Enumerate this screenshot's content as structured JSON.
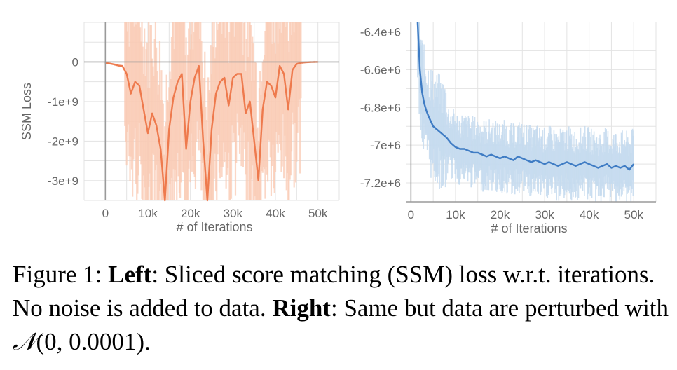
{
  "chart_data": [
    {
      "type": "line",
      "xlabel": "# of Iterations",
      "ylabel": "SSM Loss",
      "x_ticks": [
        "0",
        "10k",
        "20k",
        "30k",
        "40k",
        "50k"
      ],
      "y_ticks": [
        "0",
        "-1e+9",
        "-2e+9",
        "-3e+9"
      ],
      "xlim": [
        -5000,
        55000
      ],
      "ylim": [
        -3500000000,
        1000000000
      ],
      "grid": true,
      "colors": {
        "line": "#ee7a4d",
        "band": "#f9c9b3"
      },
      "series": [
        {
          "x": [
            0,
            1000,
            2000,
            3000,
            4000,
            5000,
            6000,
            7000,
            8000,
            9000,
            10000,
            11000,
            12000,
            13000,
            14000,
            15000,
            16000,
            17000,
            18000,
            19000,
            20000,
            21000,
            22000,
            23000,
            24000,
            25000,
            26000,
            27000,
            28000,
            29000,
            30000,
            31000,
            32000,
            33000,
            34000,
            35000,
            36000,
            37000,
            38000,
            39000,
            40000,
            41000,
            42000,
            43000,
            44000,
            45000,
            46000,
            47000,
            48000,
            49000,
            50000
          ],
          "y": [
            -20000000,
            -40000000,
            -60000000,
            -90000000,
            -100000000,
            -300000000,
            -800000000,
            -500000000,
            -600000000,
            -1200000000,
            -1800000000,
            -1300000000,
            -1600000000,
            -2200000000,
            -3500000000,
            -1700000000,
            -900000000,
            -500000000,
            -300000000,
            -2200000000,
            -1000000000,
            -400000000,
            -100000000,
            -2000000000,
            -3500000000,
            -1700000000,
            -800000000,
            -500000000,
            -400000000,
            -1100000000,
            -400000000,
            -300000000,
            -300000000,
            -1300000000,
            -1000000000,
            -2000000000,
            -3000000000,
            -1200000000,
            -500000000,
            -600000000,
            -900000000,
            -100000000,
            -300000000,
            -1200000000,
            -200000000,
            -50000000,
            -20000000,
            -10000000,
            -5000000,
            0,
            0
          ]
        }
      ]
    },
    {
      "type": "line",
      "xlabel": "# of Iterations",
      "ylabel": "",
      "x_ticks": [
        "0",
        "10k",
        "20k",
        "30k",
        "40k",
        "50k"
      ],
      "y_ticks": [
        "-6.4e+6",
        "-6.6e+6",
        "-6.8e+6",
        "-7e+6",
        "-7.2e+6"
      ],
      "xlim": [
        -1000,
        55000
      ],
      "ylim": [
        -7300000,
        -6350000
      ],
      "grid": true,
      "colors": {
        "line": "#3f7cc4",
        "band": "#c6daee"
      },
      "series": [
        {
          "x": [
            1500,
            2000,
            2500,
            3000,
            3500,
            4000,
            5000,
            6000,
            7000,
            8000,
            9000,
            10000,
            11000,
            12000,
            13000,
            14000,
            15000,
            16000,
            17000,
            18000,
            19000,
            20000,
            21000,
            22000,
            23000,
            24000,
            25000,
            26000,
            27000,
            28000,
            29000,
            30000,
            31000,
            32000,
            33000,
            34000,
            35000,
            36000,
            37000,
            38000,
            39000,
            40000,
            41000,
            42000,
            43000,
            44000,
            45000,
            46000,
            47000,
            48000,
            49000,
            50000
          ],
          "y": [
            -6350000,
            -6600000,
            -6720000,
            -6780000,
            -6820000,
            -6850000,
            -6900000,
            -6920000,
            -6940000,
            -6960000,
            -6990000,
            -7010000,
            -7020000,
            -7020000,
            -7030000,
            -7040000,
            -7040000,
            -7050000,
            -7060000,
            -7050000,
            -7060000,
            -7070000,
            -7060000,
            -7070000,
            -7080000,
            -7060000,
            -7070000,
            -7080000,
            -7090000,
            -7080000,
            -7090000,
            -7100000,
            -7090000,
            -7100000,
            -7110000,
            -7100000,
            -7090000,
            -7100000,
            -7110000,
            -7100000,
            -7090000,
            -7100000,
            -7110000,
            -7120000,
            -7110000,
            -7100000,
            -7120000,
            -7110000,
            -7120000,
            -7110000,
            -7130000,
            -7100000
          ]
        }
      ]
    }
  ],
  "caption": {
    "figure_label": "Figure 1: ",
    "left_label": "Left",
    "left_text": ": Sliced score matching (SSM) loss w.r.t. iterations. No noise is added to data. ",
    "right_label": "Right",
    "right_text": ": Same but data are perturbed with ",
    "math": "𝒩(0, 0.0001).",
    "math_symbol": "𝒩",
    "math_args": "(0, 0.0001)."
  }
}
